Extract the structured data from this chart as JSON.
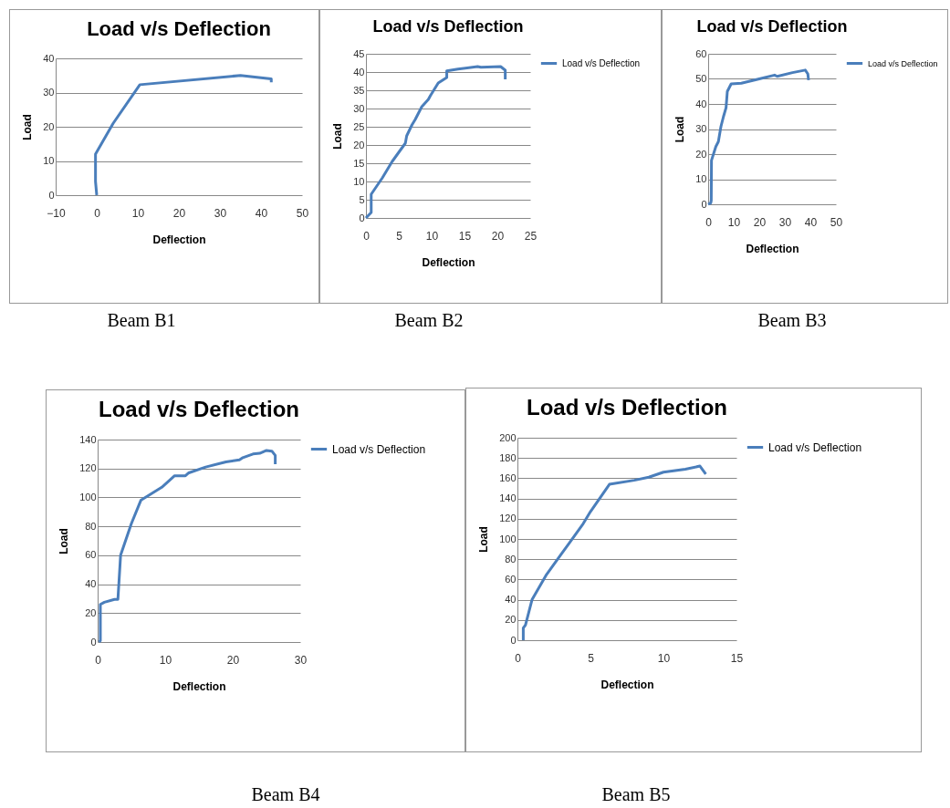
{
  "chart_data": [
    {
      "type": "line",
      "title": "Load v/s Deflection",
      "xlabel": "Deflection",
      "ylabel": "Load",
      "xlim": [
        -10,
        50
      ],
      "xticks": [
        -10,
        0,
        10,
        20,
        30,
        40,
        50
      ],
      "ylim": [
        0,
        40
      ],
      "yticks": [
        0,
        10,
        20,
        30,
        40
      ],
      "grid": "y",
      "legend": false,
      "annotations": [
        "Beam B1"
      ],
      "series": [
        {
          "color": "#4a7ebb",
          "x": [
            0,
            -0.3,
            -0.3,
            4,
            10.5,
            35,
            42.5,
            42.5
          ],
          "values": [
            0,
            4,
            12,
            21,
            32.3,
            35,
            34,
            33
          ]
        }
      ]
    },
    {
      "type": "line",
      "title": "Load v/s Deflection",
      "xlabel": "Deflection",
      "ylabel": "Load",
      "xlim": [
        0,
        25
      ],
      "xticks": [
        0,
        5,
        10,
        15,
        20,
        25
      ],
      "ylim": [
        0,
        45
      ],
      "yticks": [
        0,
        5,
        10,
        15,
        20,
        25,
        30,
        35,
        40,
        45
      ],
      "grid": "y",
      "legend": "right",
      "annotations": [
        "Beam B2"
      ],
      "series": [
        {
          "name": "Load v/s Deflection",
          "color": "#4a7ebb",
          "x": [
            0,
            0.8,
            0.8,
            2.5,
            4,
            5,
            6,
            6.2,
            7,
            7.5,
            8.5,
            9.5,
            9.8,
            11,
            12.3,
            12.3,
            14,
            17,
            17.5,
            20.5,
            21.2,
            21.2
          ],
          "values": [
            0,
            1.5,
            6.5,
            11,
            15.5,
            18,
            20.5,
            22.5,
            25.5,
            27,
            30.5,
            32.5,
            33.5,
            37,
            38.5,
            40.3,
            40.8,
            41.5,
            41.3,
            41.5,
            40.5,
            38
          ]
        }
      ]
    },
    {
      "type": "line",
      "title": "Load v/s Deflection",
      "xlabel": "Deflection",
      "ylabel": "Load",
      "xlim": [
        0,
        50
      ],
      "xticks": [
        0,
        10,
        20,
        30,
        40,
        50
      ],
      "ylim": [
        0,
        60
      ],
      "yticks": [
        0,
        10,
        20,
        30,
        40,
        50,
        60
      ],
      "grid": "y",
      "legend": "right",
      "annotations": [
        "Beam B3"
      ],
      "series": [
        {
          "name": "Load v/s Deflection",
          "color": "#4a7ebb",
          "x": [
            0,
            1,
            1.2,
            1.3,
            3,
            4,
            5,
            6,
            7,
            7.5,
            9,
            13,
            20,
            26,
            27,
            33,
            38,
            39,
            39.3
          ],
          "values": [
            0,
            0.5,
            1.5,
            17.5,
            23,
            25,
            31,
            35,
            38.5,
            45,
            48,
            48.3,
            50,
            51.5,
            51,
            52.5,
            53.5,
            52,
            49.5
          ]
        }
      ]
    },
    {
      "type": "line",
      "title": "Load v/s Deflection",
      "xlabel": "Deflection",
      "ylabel": "Load",
      "xlim": [
        0,
        30
      ],
      "xticks": [
        0,
        10,
        20,
        30
      ],
      "ylim": [
        0,
        140
      ],
      "yticks": [
        0,
        20,
        40,
        60,
        80,
        100,
        120,
        140
      ],
      "grid": "y",
      "legend": "right",
      "annotations": [
        "Beam B4"
      ],
      "series": [
        {
          "name": "Load v/s Deflection",
          "color": "#4a7ebb",
          "x": [
            0.2,
            0.4,
            0.4,
            1,
            2.5,
            3,
            3.4,
            5,
            6.4,
            9.5,
            11.4,
            13,
            13.5,
            16,
            19,
            21,
            21.5,
            23,
            24,
            25,
            25.8,
            26.3,
            26.3
          ],
          "values": [
            0,
            1,
            26,
            27.5,
            29.5,
            29.5,
            60,
            82,
            98,
            107,
            115,
            115,
            117,
            121,
            124.5,
            126,
            127.5,
            130,
            130.5,
            132.5,
            132,
            129,
            123
          ]
        }
      ]
    },
    {
      "type": "line",
      "title": "Load v/s Deflection",
      "xlabel": "Deflection",
      "ylabel": "Load",
      "xlim": [
        0,
        15
      ],
      "xticks": [
        0,
        5,
        10,
        15
      ],
      "ylim": [
        0,
        200
      ],
      "yticks": [
        0,
        20,
        40,
        60,
        80,
        100,
        120,
        140,
        160,
        180,
        200
      ],
      "grid": "y",
      "legend": "right",
      "annotations": [
        "Beam B5"
      ],
      "series": [
        {
          "name": "Load v/s Deflection",
          "color": "#4a7ebb",
          "x": [
            0.4,
            0.4,
            0.55,
            1,
            2,
            3,
            3.5,
            4.5,
            5,
            6.3,
            8,
            9,
            10,
            11.5,
            12.5,
            12.9
          ],
          "values": [
            0,
            12,
            15,
            40,
            65,
            85,
            95,
            115,
            127,
            154,
            158,
            161,
            166,
            169,
            172,
            164
          ]
        }
      ]
    }
  ]
}
